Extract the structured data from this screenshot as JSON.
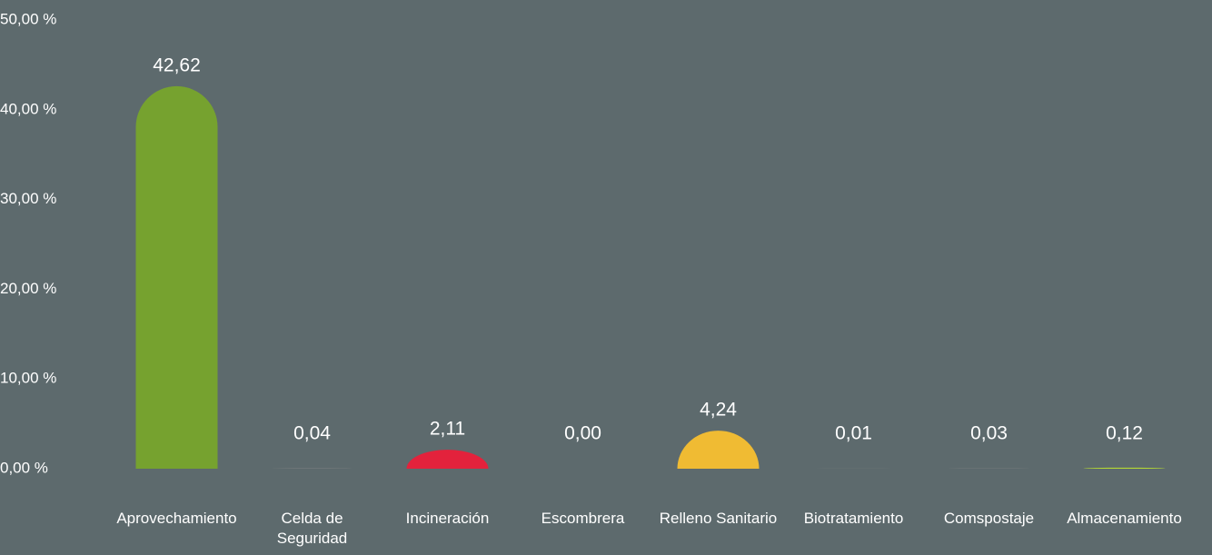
{
  "chart_data": {
    "type": "bar",
    "categories": [
      "Aprovechamiento",
      "Celda de Seguridad",
      "Incineración",
      "Escombrera",
      "Relleno Sanitario",
      "Biotratamiento",
      "Comspostaje",
      "Almacenamiento"
    ],
    "values": [
      42.62,
      0.04,
      2.11,
      0.0,
      4.24,
      0.01,
      0.03,
      0.12
    ],
    "value_labels": [
      "42,62",
      "0,04",
      "2,11",
      "0,00",
      "4,24",
      "0,01",
      "0,03",
      "0,12"
    ],
    "colors": [
      "#76a22f",
      "#8a8a8a",
      "#e3223c",
      "#8a8a8a",
      "#f0bb33",
      "#8a8a8a",
      "#8a8a8a",
      "#b5d934"
    ],
    "ylim": [
      0,
      50
    ],
    "yticks": [
      {
        "value": 0,
        "label": "0,00 %"
      },
      {
        "value": 10,
        "label": "10,00 %"
      },
      {
        "value": 20,
        "label": "20,00 %"
      },
      {
        "value": 30,
        "label": "30,00 %"
      },
      {
        "value": 40,
        "label": "40,00 %"
      },
      {
        "value": 50,
        "label": "50,00 %"
      }
    ],
    "grid": false
  }
}
